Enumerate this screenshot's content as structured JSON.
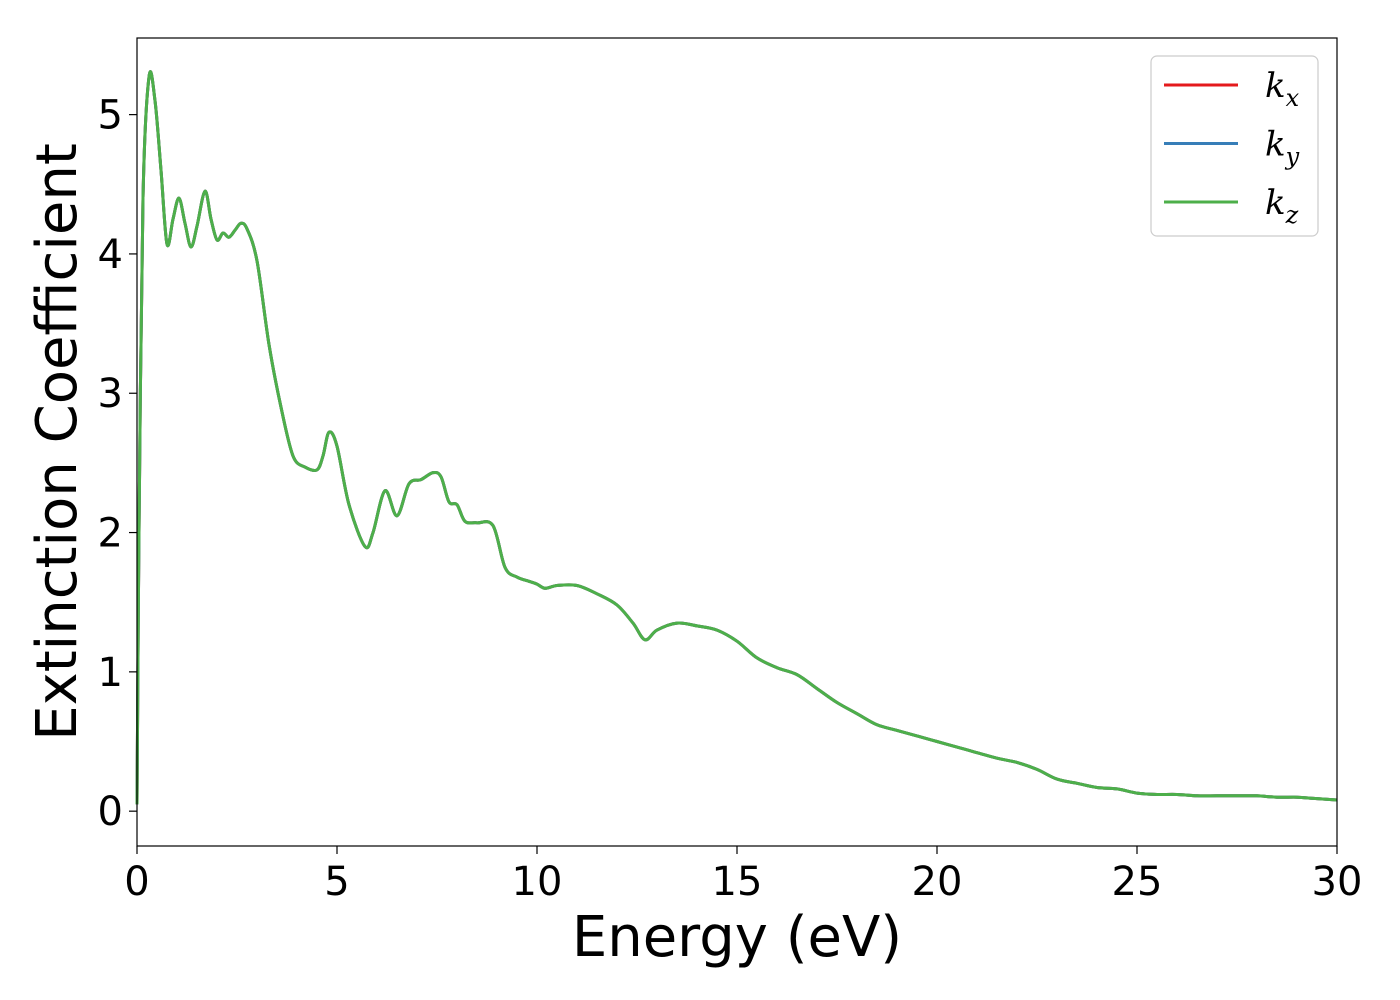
{
  "chart_data": {
    "type": "line",
    "title": "",
    "xlabel": "Energy (eV)",
    "ylabel": "Extinction Coefficient",
    "xlim": [
      0,
      30
    ],
    "ylim": [
      -0.25,
      5.55
    ],
    "xticks": [
      0,
      5,
      10,
      15,
      20,
      25,
      30
    ],
    "yticks": [
      0,
      1,
      2,
      3,
      4,
      5
    ],
    "grid": false,
    "legend_position": "top-right",
    "series": [
      {
        "name": "k_x",
        "base": "k",
        "sub": "x",
        "color": "#e41a1c"
      },
      {
        "name": "k_y",
        "base": "k",
        "sub": "y",
        "color": "#377eb8"
      },
      {
        "name": "k_z",
        "base": "k",
        "sub": "z",
        "color": "#4daf4a"
      }
    ],
    "x": [
      0,
      0.05,
      0.15,
      0.3,
      0.45,
      0.6,
      0.75,
      0.9,
      1.05,
      1.2,
      1.35,
      1.5,
      1.7,
      1.85,
      2.0,
      2.15,
      2.3,
      2.45,
      2.6,
      2.75,
      3.0,
      3.3,
      3.6,
      3.9,
      4.2,
      4.5,
      4.65,
      4.8,
      5.0,
      5.3,
      5.7,
      5.9,
      6.2,
      6.5,
      6.8,
      7.1,
      7.4,
      7.6,
      7.8,
      8.0,
      8.2,
      8.5,
      8.9,
      9.2,
      9.5,
      9.8,
      10.0,
      10.2,
      10.5,
      11.0,
      11.5,
      12.0,
      12.4,
      12.7,
      13.0,
      13.5,
      14.0,
      14.5,
      15.0,
      15.5,
      16.0,
      16.5,
      17.0,
      17.5,
      18.0,
      18.5,
      19.0,
      19.5,
      20.0,
      20.5,
      21.0,
      21.5,
      22.0,
      22.5,
      23.0,
      23.5,
      24.0,
      24.5,
      25.0,
      25.5,
      26.0,
      26.5,
      27.0,
      27.5,
      28.0,
      28.5,
      29.0,
      29.5,
      30.0
    ],
    "y": [
      0.05,
      2.0,
      4.4,
      5.27,
      5.1,
      4.6,
      4.07,
      4.25,
      4.4,
      4.22,
      4.05,
      4.2,
      4.45,
      4.25,
      4.1,
      4.15,
      4.12,
      4.17,
      4.22,
      4.18,
      3.95,
      3.35,
      2.9,
      2.55,
      2.47,
      2.45,
      2.55,
      2.72,
      2.62,
      2.2,
      1.9,
      2.0,
      2.3,
      2.12,
      2.35,
      2.38,
      2.43,
      2.4,
      2.22,
      2.2,
      2.08,
      2.07,
      2.05,
      1.75,
      1.68,
      1.65,
      1.63,
      1.6,
      1.62,
      1.62,
      1.56,
      1.48,
      1.35,
      1.23,
      1.3,
      1.35,
      1.33,
      1.3,
      1.22,
      1.1,
      1.03,
      0.98,
      0.88,
      0.78,
      0.7,
      0.62,
      0.58,
      0.54,
      0.5,
      0.46,
      0.42,
      0.38,
      0.35,
      0.3,
      0.23,
      0.2,
      0.17,
      0.16,
      0.13,
      0.12,
      0.12,
      0.11,
      0.11,
      0.11,
      0.11,
      0.1,
      0.1,
      0.09,
      0.08
    ]
  }
}
